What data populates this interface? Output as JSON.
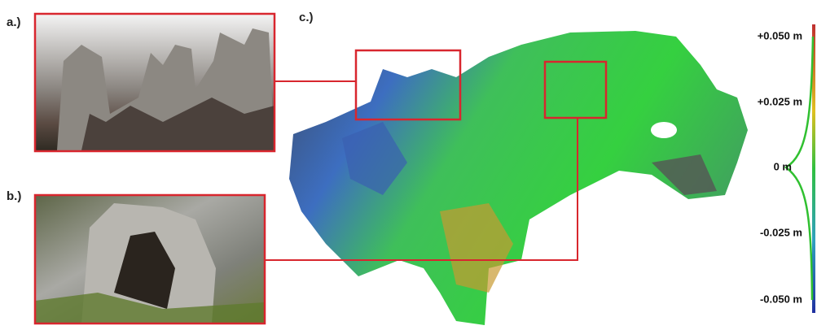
{
  "panels": [
    {
      "label": "a.)"
    },
    {
      "label": "b.)"
    },
    {
      "label": "c.)"
    }
  ],
  "scale": {
    "labels": [
      "+0.050 m",
      "+0.025 m",
      "0 m",
      "-0.025 m",
      "-0.050 m"
    ]
  }
}
